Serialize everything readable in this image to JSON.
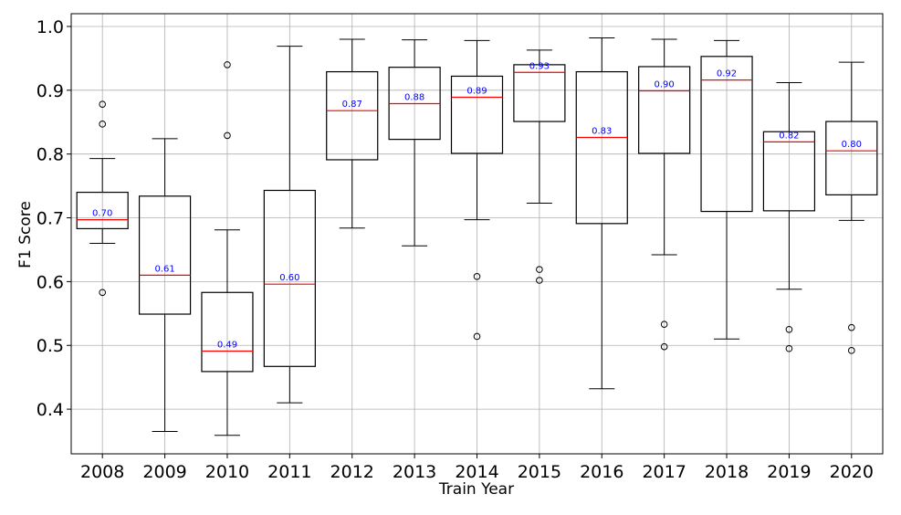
{
  "chart_data": {
    "type": "boxplot",
    "title": "",
    "xlabel": "Train Year",
    "ylabel": "F1 Score",
    "ylim": [
      0.33,
      1.02
    ],
    "yticks": [
      "0.4",
      "0.5",
      "0.6",
      "0.7",
      "0.8",
      "0.9",
      "1.0"
    ],
    "grid": true,
    "colors": {
      "box": "#000000",
      "median": "#ff0000",
      "median_label": "#0000ff",
      "grid": "#b0b0b0"
    },
    "categories": [
      "2008",
      "2009",
      "2010",
      "2011",
      "2012",
      "2013",
      "2014",
      "2015",
      "2016",
      "2017",
      "2018",
      "2019",
      "2020"
    ],
    "boxes": [
      {
        "whisker_low": 0.66,
        "q1": 0.683,
        "median": 0.697,
        "q3": 0.74,
        "whisker_high": 0.793,
        "median_label": "0.70",
        "outliers": [
          0.583,
          0.847,
          0.878
        ]
      },
      {
        "whisker_low": 0.365,
        "q1": 0.549,
        "median": 0.61,
        "q3": 0.734,
        "whisker_high": 0.824,
        "median_label": "0.61",
        "outliers": []
      },
      {
        "whisker_low": 0.359,
        "q1": 0.459,
        "median": 0.491,
        "q3": 0.583,
        "whisker_high": 0.681,
        "median_label": "0.49",
        "outliers": [
          0.829,
          0.94
        ]
      },
      {
        "whisker_low": 0.41,
        "q1": 0.467,
        "median": 0.596,
        "q3": 0.743,
        "whisker_high": 0.969,
        "median_label": "0.60",
        "outliers": []
      },
      {
        "whisker_low": 0.684,
        "q1": 0.791,
        "median": 0.868,
        "q3": 0.929,
        "whisker_high": 0.98,
        "median_label": "0.87",
        "outliers": []
      },
      {
        "whisker_low": 0.656,
        "q1": 0.823,
        "median": 0.879,
        "q3": 0.936,
        "whisker_high": 0.979,
        "median_label": "0.88",
        "outliers": []
      },
      {
        "whisker_low": 0.697,
        "q1": 0.801,
        "median": 0.889,
        "q3": 0.922,
        "whisker_high": 0.978,
        "median_label": "0.89",
        "outliers": [
          0.514,
          0.608
        ]
      },
      {
        "whisker_low": 0.723,
        "q1": 0.851,
        "median": 0.928,
        "q3": 0.94,
        "whisker_high": 0.963,
        "median_label": "0.93",
        "outliers": [
          0.602,
          0.619
        ]
      },
      {
        "whisker_low": 0.432,
        "q1": 0.691,
        "median": 0.826,
        "q3": 0.929,
        "whisker_high": 0.982,
        "median_label": "0.83",
        "outliers": []
      },
      {
        "whisker_low": 0.642,
        "q1": 0.801,
        "median": 0.899,
        "q3": 0.937,
        "whisker_high": 0.98,
        "median_label": "0.90",
        "outliers": [
          0.498,
          0.533
        ]
      },
      {
        "whisker_low": 0.51,
        "q1": 0.71,
        "median": 0.916,
        "q3": 0.953,
        "whisker_high": 0.978,
        "median_label": "0.92",
        "outliers": []
      },
      {
        "whisker_low": 0.588,
        "q1": 0.711,
        "median": 0.819,
        "q3": 0.835,
        "whisker_high": 0.912,
        "median_label": "0.82",
        "outliers": [
          0.495,
          0.525
        ]
      },
      {
        "whisker_low": 0.696,
        "q1": 0.736,
        "median": 0.805,
        "q3": 0.851,
        "whisker_high": 0.944,
        "median_label": "0.80",
        "outliers": [
          0.492,
          0.528
        ]
      }
    ]
  }
}
